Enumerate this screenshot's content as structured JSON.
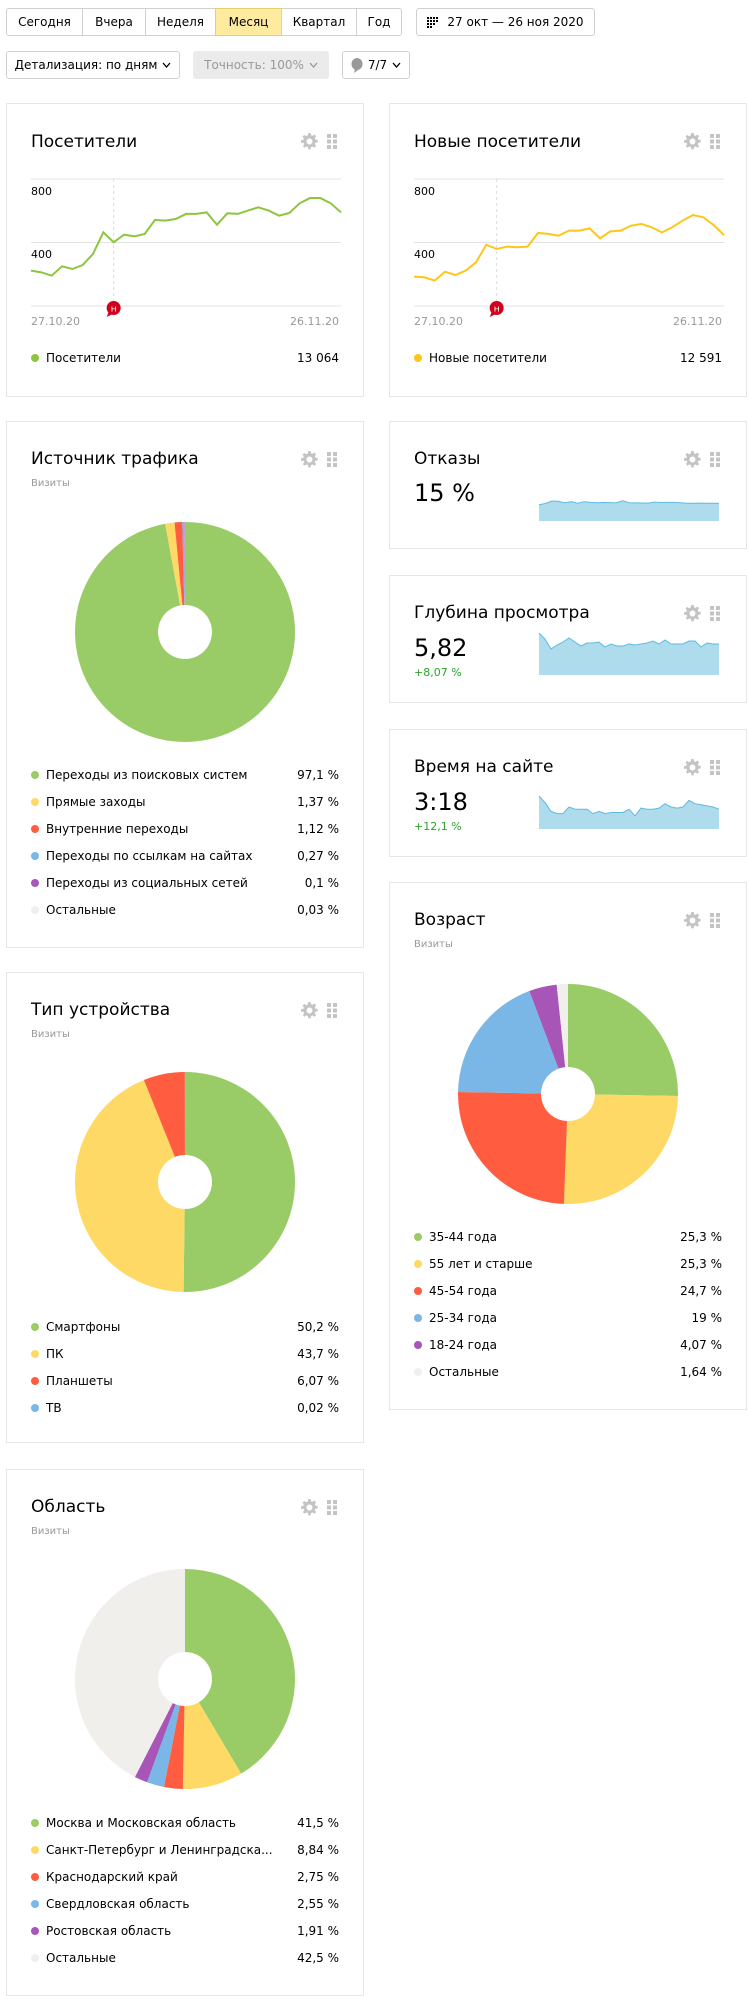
{
  "periods": [
    {
      "label": "Сегодня"
    },
    {
      "label": "Вчера"
    },
    {
      "label": "Неделя"
    },
    {
      "label": "Месяц",
      "active": true
    },
    {
      "label": "Квартал"
    },
    {
      "label": "Год"
    }
  ],
  "date_range": {
    "label": "27 окт — 26 ноя 2020",
    "icon": "calendar-icon"
  },
  "detail": {
    "label": "Детализация: по дням"
  },
  "accuracy": {
    "label": "Точность: 100%"
  },
  "segments": {
    "label": "7/7",
    "icon": "balloon-icon"
  },
  "colors": {
    "green": "#99cc66",
    "yellow": "#ffd450",
    "red": "#ff5c40",
    "blue": "#7ab6e6",
    "purple": "#a855b8",
    "gray": "#f0efec",
    "spark": "#aedcec",
    "spark_line": "#5dbbe0",
    "delta": "#2ba32b"
  },
  "visitors": {
    "title": "Посетители",
    "legend": "Посетители",
    "total": "13 064",
    "color": "#8cc63f",
    "chart_data": {
      "type": "line",
      "x_start": "27.10.20",
      "x_end": "26.11.20",
      "yticks": [
        "800",
        "400"
      ],
      "ylim": [
        0,
        800
      ],
      "holiday_index": 8,
      "holiday_label": "н",
      "values": [
        223,
        212,
        191,
        250,
        233,
        258,
        328,
        464,
        401,
        449,
        439,
        454,
        542,
        538,
        548,
        580,
        580,
        590,
        512,
        584,
        580,
        601,
        622,
        601,
        569,
        586,
        647,
        680,
        680,
        647,
        590
      ]
    }
  },
  "new_visitors": {
    "title": "Новые посетители",
    "legend": "Новые посетители",
    "total": "12 591",
    "color": "#ffc61a",
    "chart_data": {
      "type": "line",
      "x_start": "27.10.20",
      "x_end": "26.11.20",
      "yticks": [
        "800",
        "400"
      ],
      "ylim": [
        0,
        800
      ],
      "holiday_index": 8,
      "holiday_label": "н",
      "values": [
        185,
        181,
        160,
        216,
        195,
        223,
        275,
        386,
        359,
        374,
        370,
        374,
        460,
        454,
        443,
        475,
        475,
        489,
        426,
        470,
        475,
        506,
        517,
        496,
        464,
        496,
        538,
        573,
        559,
        510,
        447
      ]
    }
  },
  "bounce": {
    "title": "Отказы",
    "value": "15 %",
    "sparkline": [
      13,
      14,
      16,
      15.8,
      14.5,
      15.5,
      14.2,
      15.4,
      14.9,
      14.6,
      14.8,
      14.7,
      14.5,
      16.2,
      14.6,
      14.5,
      14.4,
      14.3,
      15.1,
      14.8,
      14.9,
      14.9,
      14.6,
      14.2,
      14.2,
      14.3,
      14.2,
      14.2,
      14.1
    ]
  },
  "depth": {
    "title": "Глубина просмотра",
    "value": "5,82",
    "delta": "+8,07 %",
    "sparkline": [
      7.2,
      6.6,
      5.6,
      6.0,
      6.3,
      6.7,
      6.3,
      5.9,
      6.2,
      6.2,
      6.3,
      5.8,
      6.1,
      5.9,
      5.9,
      6.1,
      6.0,
      6.1,
      6.2,
      6.4,
      6.1,
      6.5,
      6.1,
      6.1,
      6.1,
      6.4,
      6.4,
      5.8,
      6.2,
      6.1,
      6.1
    ]
  },
  "time": {
    "title": "Время на сайте",
    "value": "3:18",
    "delta": "+12,1 %",
    "sparkline": [
      3.9,
      3.6,
      3.2,
      3.1,
      3.1,
      3.4,
      3.3,
      3.3,
      3.3,
      3.1,
      3.2,
      3.1,
      3.15,
      3.15,
      3.15,
      3.3,
      3.0,
      3.35,
      3.3,
      3.3,
      3.35,
      3.55,
      3.4,
      3.35,
      3.4,
      3.7,
      3.55,
      3.5,
      3.45,
      3.4,
      3.3
    ]
  },
  "traffic": {
    "title": "Источник трафика",
    "subtitle": "Визиты",
    "chart_data": {
      "type": "pie",
      "items": [
        {
          "label": "Переходы из поисковых систем",
          "value": 97.1,
          "display": "97,1 %",
          "color": "#99cc66"
        },
        {
          "label": "Прямые заходы",
          "value": 1.37,
          "display": "1,37 %",
          "color": "#ffd966"
        },
        {
          "label": "Внутренние переходы",
          "value": 1.12,
          "display": "1,12 %",
          "color": "#ff5c40"
        },
        {
          "label": "Переходы по ссылкам на сайтах",
          "value": 0.27,
          "display": "0,27 %",
          "color": "#7ab6e6"
        },
        {
          "label": "Переходы из социальных сетей",
          "value": 0.1,
          "display": "0,1 %",
          "color": "#a855b8"
        },
        {
          "label": "Остальные",
          "value": 0.03,
          "display": "0,03 %",
          "color": "#f0efec"
        }
      ]
    }
  },
  "age": {
    "title": "Возраст",
    "subtitle": "Визиты",
    "chart_data": {
      "type": "pie",
      "items": [
        {
          "label": "35-44 года",
          "value": 25.3,
          "display": "25,3 %",
          "color": "#99cc66"
        },
        {
          "label": "55 лет и старше",
          "value": 25.3,
          "display": "25,3 %",
          "color": "#ffd966"
        },
        {
          "label": "45-54 года",
          "value": 24.7,
          "display": "24,7 %",
          "color": "#ff5c40"
        },
        {
          "label": "25-34 года",
          "value": 19,
          "display": "19 %",
          "color": "#7ab6e6"
        },
        {
          "label": "18-24 года",
          "value": 4.07,
          "display": "4,07 %",
          "color": "#a855b8"
        },
        {
          "label": "Остальные",
          "value": 1.64,
          "display": "1,64 %",
          "color": "#f0efec"
        }
      ]
    }
  },
  "device": {
    "title": "Тип устройства",
    "subtitle": "Визиты",
    "chart_data": {
      "type": "pie",
      "items": [
        {
          "label": "Смартфоны",
          "value": 50.2,
          "display": "50,2 %",
          "color": "#99cc66"
        },
        {
          "label": "ПК",
          "value": 43.7,
          "display": "43,7 %",
          "color": "#ffd966"
        },
        {
          "label": "Планшеты",
          "value": 6.07,
          "display": "6,07 %",
          "color": "#ff5c40"
        },
        {
          "label": "ТВ",
          "value": 0.02,
          "display": "0,02 %",
          "color": "#7ab6e6"
        }
      ]
    }
  },
  "region": {
    "title": "Область",
    "subtitle": "Визиты",
    "chart_data": {
      "type": "pie",
      "items": [
        {
          "label": "Москва и Московская область",
          "value": 41.5,
          "display": "41,5 %",
          "color": "#99cc66"
        },
        {
          "label": "Санкт-Петербург и Ленинградска...",
          "value": 8.84,
          "display": "8,84 %",
          "color": "#ffd966"
        },
        {
          "label": "Краснодарский край",
          "value": 2.75,
          "display": "2,75 %",
          "color": "#ff5c40"
        },
        {
          "label": "Свердловская область",
          "value": 2.55,
          "display": "2,55 %",
          "color": "#7ab6e6"
        },
        {
          "label": "Ростовская область",
          "value": 1.91,
          "display": "1,91 %",
          "color": "#a855b8"
        },
        {
          "label": "Остальные",
          "value": 42.5,
          "display": "42,5 %",
          "color": "#f0efec"
        }
      ]
    }
  }
}
